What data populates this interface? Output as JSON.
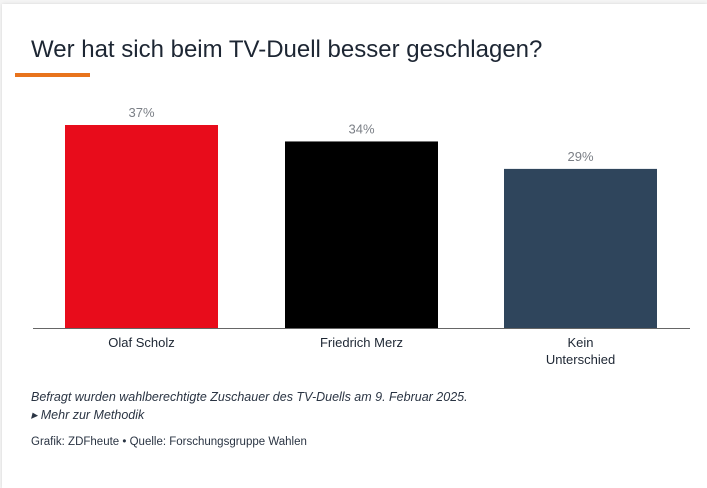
{
  "chart_data": {
    "type": "bar",
    "title": "Wer hat sich beim TV-Duell besser geschlagen?",
    "categories": [
      [
        "Olaf Scholz"
      ],
      [
        "Friedrich Merz"
      ],
      [
        "Kein",
        "Unterschied"
      ]
    ],
    "values": [
      37,
      34,
      29
    ],
    "value_labels": [
      "37%",
      "34%",
      "29%"
    ],
    "colors": [
      "#e80c1b",
      "#000000",
      "#2f455c"
    ],
    "ylim": [
      0,
      37
    ],
    "grid": false
  },
  "footer": {
    "note": "Befragt wurden wahlberechtigte Zuschauer des TV-Duells am 9. Februar 2025.",
    "more_link": "▸ Mehr zur Methodik",
    "source": "Grafik: ZDFheute • Quelle: Forschungsgruppe Wahlen"
  },
  "accent_color": "#e8731c"
}
